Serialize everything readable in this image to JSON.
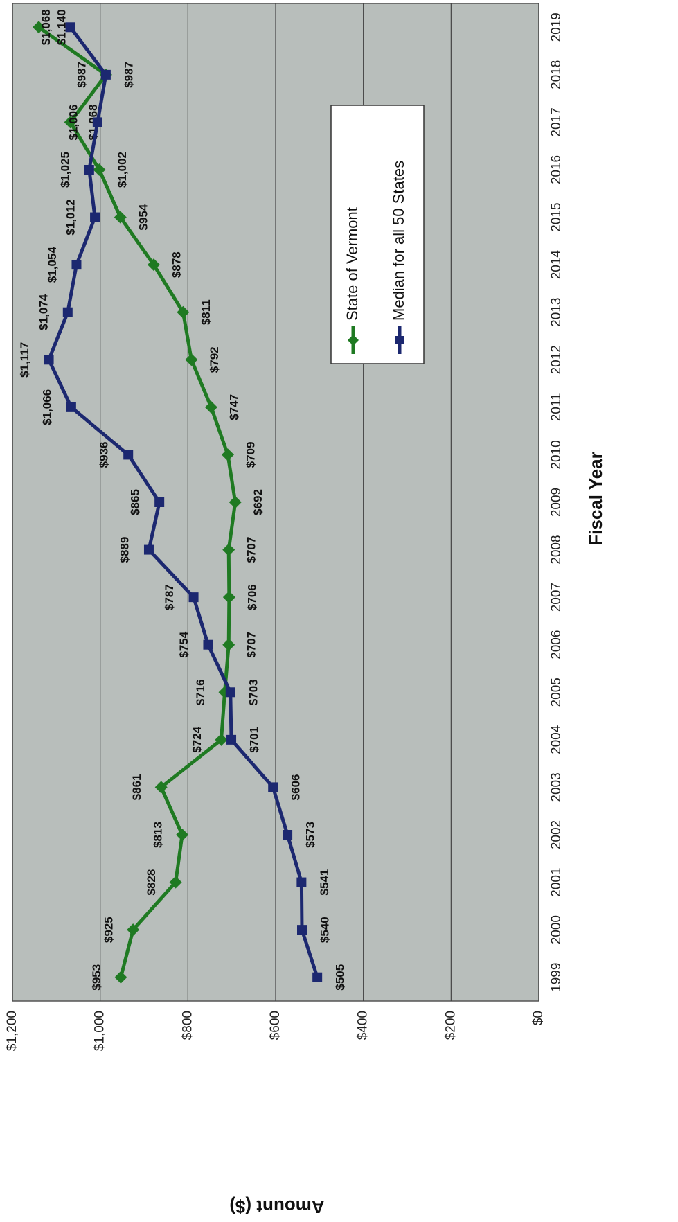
{
  "chart_data": {
    "type": "line",
    "x_label": "Fiscal Year",
    "y_label": "Amount ($)",
    "categories": [
      "1999",
      "2000",
      "2001",
      "2002",
      "2003",
      "2004",
      "2005",
      "2006",
      "2007",
      "2008",
      "2009",
      "2010",
      "2011",
      "2012",
      "2013",
      "2014",
      "2015",
      "2016",
      "2017",
      "2018",
      "2019"
    ],
    "series": [
      {
        "name": "State of Vermont",
        "color": "#1f7a22",
        "values": [
          953,
          925,
          828,
          813,
          861,
          724,
          716,
          707,
          706,
          707,
          692,
          709,
          747,
          792,
          811,
          878,
          954,
          1002,
          1068,
          987,
          1140
        ],
        "value_labels": [
          "$953",
          "$925",
          "$828",
          "$813",
          "$861",
          "$724",
          "$716",
          "$707",
          "$706",
          "$707",
          "$692",
          "$709",
          "$747",
          "$792",
          "$811",
          "$878",
          "$954",
          "$1,002",
          "$1,068",
          "$987",
          "$1,140"
        ]
      },
      {
        "name": "Median for all 50 States",
        "color": "#1c2870",
        "values": [
          505,
          540,
          541,
          573,
          606,
          701,
          703,
          754,
          787,
          889,
          865,
          936,
          1066,
          1117,
          1074,
          1054,
          1012,
          1025,
          1006,
          987,
          1068
        ],
        "value_labels": [
          "$505",
          "$540",
          "$541",
          "$573",
          "$606",
          "$701",
          "$703",
          "$754",
          "$787",
          "$889",
          "$865",
          "$936",
          "$1,066",
          "$1,117",
          "$1,074",
          "$1,054",
          "$1,012",
          "$1,025",
          "$1,006",
          "$987",
          "$1,068"
        ]
      }
    ],
    "ylim": [
      0,
      1200
    ],
    "yticks": [
      {
        "value": 0,
        "label": "$0"
      },
      {
        "value": 200,
        "label": "$200"
      },
      {
        "value": 400,
        "label": "$400"
      },
      {
        "value": 600,
        "label": "$600"
      },
      {
        "value": 800,
        "label": "$800"
      },
      {
        "value": 1000,
        "label": "$1,000"
      },
      {
        "value": 1200,
        "label": "$1,200"
      }
    ],
    "grid": true
  }
}
